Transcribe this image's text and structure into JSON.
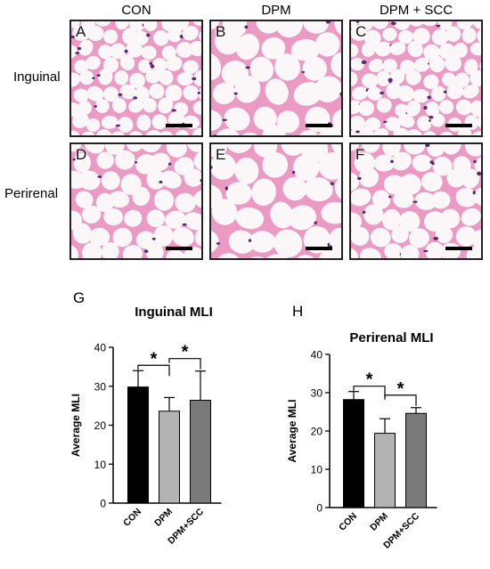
{
  "columns": [
    "CON",
    "DPM",
    "DPM + SCC"
  ],
  "rows": [
    "Inguinal",
    "Perirenal"
  ],
  "panels": [
    {
      "letter": "A",
      "tissue": "inguinal"
    },
    {
      "letter": "B",
      "tissue": "inguinal"
    },
    {
      "letter": "C",
      "tissue": "inguinal"
    },
    {
      "letter": "D",
      "tissue": "perirenal"
    },
    {
      "letter": "E",
      "tissue": "perirenal"
    },
    {
      "letter": "F",
      "tissue": "perirenal"
    }
  ],
  "colors": {
    "stain": "#e0559a",
    "nuclei": "#5a2a6e",
    "background": "#f8f1f5",
    "panel_border": "#222222"
  },
  "chart_data": [
    {
      "letter": "G",
      "type": "bar",
      "title": "Inguinal MLI",
      "ylabel": "Average MLI",
      "categories": [
        "CON",
        "DPM",
        "DPM+SCC"
      ],
      "values": [
        29.8,
        23.6,
        26.4
      ],
      "errors": [
        4.2,
        3.5,
        7.5
      ],
      "bar_colors": [
        "#000000",
        "#b3b3b3",
        "#7a7a7a"
      ],
      "ylim": [
        0,
        40
      ],
      "yticks": [
        0,
        10,
        20,
        30,
        40
      ],
      "significance": [
        {
          "from": 0,
          "to": 1,
          "label": "*"
        },
        {
          "from": 1,
          "to": 2,
          "label": "*"
        }
      ]
    },
    {
      "letter": "H",
      "type": "bar",
      "title": "Perirenal MLI",
      "ylabel": "Average MLI",
      "categories": [
        "CON",
        "DPM",
        "DPM+SCC"
      ],
      "values": [
        28.2,
        19.4,
        24.6
      ],
      "errors": [
        2.1,
        3.8,
        1.5
      ],
      "bar_colors": [
        "#000000",
        "#b3b3b3",
        "#7a7a7a"
      ],
      "ylim": [
        0,
        40
      ],
      "yticks": [
        0,
        10,
        20,
        30,
        40
      ],
      "significance": [
        {
          "from": 0,
          "to": 1,
          "label": "*"
        },
        {
          "from": 1,
          "to": 2,
          "label": "*"
        }
      ]
    }
  ]
}
